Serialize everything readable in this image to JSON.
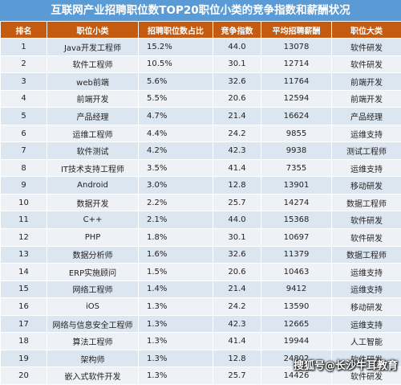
{
  "title": "互联网产业招聘职位数TOP20职位小类的竞争指数和薪酬状况",
  "chart_data": {
    "type": "table",
    "columns": [
      "排名",
      "职位小类",
      "招聘职位数占比",
      "竞争指数",
      "平均招聘薪酬",
      "职位大类"
    ],
    "rows": [
      [
        "1",
        "Java开发工程师",
        "15.2%",
        "44.0",
        "13078",
        "软件研发"
      ],
      [
        "2",
        "软件工程师",
        "10.5%",
        "30.1",
        "12714",
        "软件研发"
      ],
      [
        "3",
        "web前端",
        "5.6%",
        "32.6",
        "11764",
        "前端开发"
      ],
      [
        "4",
        "前端开发",
        "5.5%",
        "20.6",
        "12594",
        "前端开发"
      ],
      [
        "5",
        "产品经理",
        "4.7%",
        "21.4",
        "16624",
        "产品经理"
      ],
      [
        "6",
        "运维工程师",
        "4.4%",
        "24.2",
        "9855",
        "运维支持"
      ],
      [
        "7",
        "软件测试",
        "4.2%",
        "42.3",
        "9938",
        "测试工程师"
      ],
      [
        "8",
        "IT技术支持工程师",
        "3.5%",
        "41.4",
        "7355",
        "运维支持"
      ],
      [
        "9",
        "Android",
        "3.0%",
        "12.8",
        "13901",
        "移动研发"
      ],
      [
        "10",
        "数据开发",
        "2.2%",
        "25.7",
        "14274",
        "数据工程师"
      ],
      [
        "11",
        "C++",
        "2.1%",
        "44.0",
        "15368",
        "软件研发"
      ],
      [
        "12",
        "PHP",
        "1.8%",
        "30.1",
        "10697",
        "软件研发"
      ],
      [
        "13",
        "数据分析师",
        "1.6%",
        "32.6",
        "11379",
        "数据工程师"
      ],
      [
        "14",
        "ERP实施顾问",
        "1.5%",
        "20.6",
        "10463",
        "运维支持"
      ],
      [
        "15",
        "网络工程师",
        "1.4%",
        "21.4",
        "9412",
        "运维支持"
      ],
      [
        "16",
        "iOS",
        "1.3%",
        "24.2",
        "13590",
        "移动研发"
      ],
      [
        "17",
        "网络与信息安全工程师",
        "1.3%",
        "42.3",
        "12665",
        "运维支持"
      ],
      [
        "18",
        "算法工程师",
        "1.3%",
        "41.4",
        "19944",
        "人工智能"
      ],
      [
        "19",
        "架构师",
        "1.3%",
        "12.8",
        "24802",
        "软件研发"
      ],
      [
        "20",
        "嵌入式软件开发",
        "1.3%",
        "25.7",
        "14426",
        "软件研发"
      ]
    ]
  },
  "watermark": "搜狐号@长沙牛耳教育",
  "colors": {
    "title_bg": "#5b9bd5",
    "header_bg": "#c55a11",
    "row_odd": "#dce6f1",
    "row_even": "#eef2f7"
  }
}
